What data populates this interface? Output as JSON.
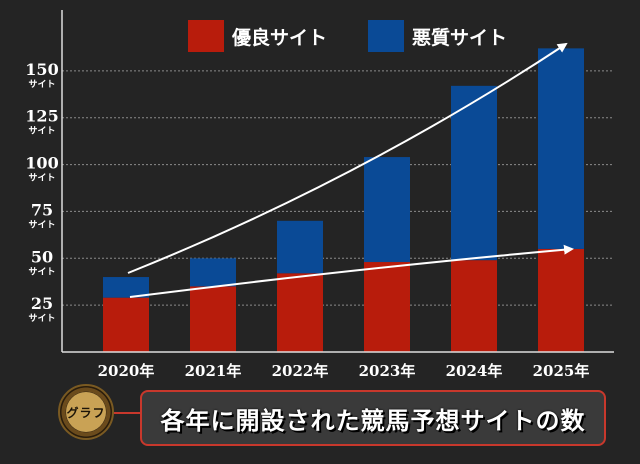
{
  "chart_data": {
    "type": "bar",
    "stacked": true,
    "categories": [
      "2020年",
      "2021年",
      "2022年",
      "2023年",
      "2024年",
      "2025年"
    ],
    "series": [
      {
        "name": "優良サイト",
        "color": "#b81c0c",
        "values": [
          29,
          35,
          42,
          48,
          49,
          55
        ]
      },
      {
        "name": "悪質サイト",
        "color": "#0a4a96",
        "values": [
          11,
          15,
          28,
          56,
          93,
          107
        ]
      }
    ],
    "y_ticks": [
      25,
      50,
      75,
      100,
      125,
      150
    ],
    "y_unit": "サイト",
    "ylim": [
      0,
      175
    ],
    "grid": true,
    "legend_position": "top",
    "trend_arrows": true
  },
  "badge": {
    "label": "グラフ"
  },
  "caption": {
    "text": "各年に開設された競馬予想サイトの数"
  }
}
